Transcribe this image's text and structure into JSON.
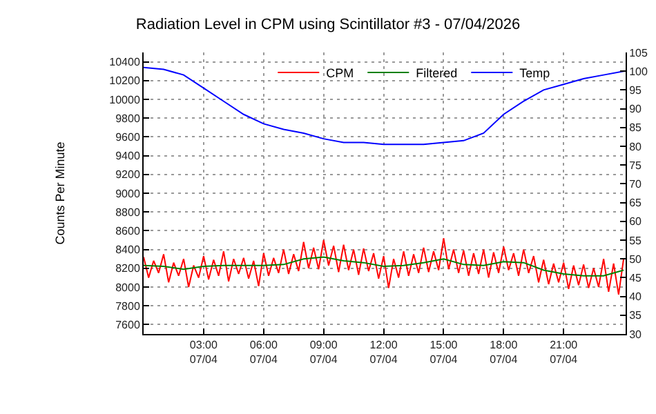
{
  "chart_data": {
    "type": "line",
    "title": "Radiation Level in CPM using Scintillator #3 - 07/04/2026",
    "ylabel": "Counts Per Minute",
    "xlim": [
      "2026-07-04T00:00",
      "2026-07-05T00:06"
    ],
    "xticks": [
      {
        "value": "2026-07-04T03:00",
        "label": "03:00\n07/04"
      },
      {
        "value": "2026-07-04T06:00",
        "label": "06:00\n07/04"
      },
      {
        "value": "2026-07-04T09:00",
        "label": "09:00\n07/04"
      },
      {
        "value": "2026-07-04T12:00",
        "label": "12:00\n07/04"
      },
      {
        "value": "2026-07-04T15:00",
        "label": "15:00\n07/04"
      },
      {
        "value": "2026-07-04T18:00",
        "label": "18:00\n07/04"
      },
      {
        "value": "2026-07-04T21:00",
        "label": "21:00\n07/04"
      }
    ],
    "ylim": [
      7500,
      10500
    ],
    "yticks": [
      7600,
      7800,
      8000,
      8200,
      8400,
      8600,
      8800,
      9000,
      9200,
      9400,
      9600,
      9800,
      10000,
      10200,
      10400
    ],
    "y2lim": [
      30,
      105
    ],
    "y2ticks": [
      30,
      35,
      40,
      45,
      50,
      55,
      60,
      65,
      70,
      75,
      80,
      85,
      90,
      95,
      100,
      105
    ],
    "grid": true,
    "legend": "top right",
    "line_style": "solid",
    "series": [
      {
        "name": "CPM",
        "color": "#ff0000",
        "x": [
          "2026-07-04T00:00",
          "2026-07-04T00:15",
          "2026-07-04T00:30",
          "2026-07-04T00:45",
          "2026-07-04T01:00",
          "2026-07-04T01:15",
          "2026-07-04T01:30",
          "2026-07-04T01:45",
          "2026-07-04T02:00",
          "2026-07-04T02:15",
          "2026-07-04T02:30",
          "2026-07-04T02:45",
          "2026-07-04T03:00",
          "2026-07-04T03:15",
          "2026-07-04T03:30",
          "2026-07-04T03:45",
          "2026-07-04T04:00",
          "2026-07-04T04:15",
          "2026-07-04T04:30",
          "2026-07-04T04:45",
          "2026-07-04T05:00",
          "2026-07-04T05:15",
          "2026-07-04T05:30",
          "2026-07-04T05:45",
          "2026-07-04T06:00",
          "2026-07-04T06:15",
          "2026-07-04T06:30",
          "2026-07-04T06:45",
          "2026-07-04T07:00",
          "2026-07-04T07:15",
          "2026-07-04T07:30",
          "2026-07-04T07:45",
          "2026-07-04T08:00",
          "2026-07-04T08:15",
          "2026-07-04T08:30",
          "2026-07-04T08:45",
          "2026-07-04T09:00",
          "2026-07-04T09:15",
          "2026-07-04T09:30",
          "2026-07-04T09:45",
          "2026-07-04T10:00",
          "2026-07-04T10:15",
          "2026-07-04T10:30",
          "2026-07-04T10:45",
          "2026-07-04T11:00",
          "2026-07-04T11:15",
          "2026-07-04T11:30",
          "2026-07-04T11:45",
          "2026-07-04T12:00",
          "2026-07-04T12:15",
          "2026-07-04T12:30",
          "2026-07-04T12:45",
          "2026-07-04T13:00",
          "2026-07-04T13:15",
          "2026-07-04T13:30",
          "2026-07-04T13:45",
          "2026-07-04T14:00",
          "2026-07-04T14:15",
          "2026-07-04T14:30",
          "2026-07-04T14:45",
          "2026-07-04T15:00",
          "2026-07-04T15:15",
          "2026-07-04T15:30",
          "2026-07-04T15:45",
          "2026-07-04T16:00",
          "2026-07-04T16:15",
          "2026-07-04T16:30",
          "2026-07-04T16:45",
          "2026-07-04T17:00",
          "2026-07-04T17:15",
          "2026-07-04T17:30",
          "2026-07-04T17:45",
          "2026-07-04T18:00",
          "2026-07-04T18:15",
          "2026-07-04T18:30",
          "2026-07-04T18:45",
          "2026-07-04T19:00",
          "2026-07-04T19:15",
          "2026-07-04T19:30",
          "2026-07-04T19:45",
          "2026-07-04T20:00",
          "2026-07-04T20:15",
          "2026-07-04T20:30",
          "2026-07-04T20:45",
          "2026-07-04T21:00",
          "2026-07-04T21:15",
          "2026-07-04T21:30",
          "2026-07-04T21:45",
          "2026-07-04T22:00",
          "2026-07-04T22:15",
          "2026-07-04T22:30",
          "2026-07-04T22:45",
          "2026-07-04T23:00",
          "2026-07-04T23:15",
          "2026-07-04T23:30",
          "2026-07-04T23:45",
          "2026-07-05T00:00"
        ],
        "values": [
          8320,
          8100,
          8280,
          8150,
          8350,
          8050,
          8260,
          8120,
          8300,
          8000,
          8230,
          8100,
          8330,
          8080,
          8290,
          8120,
          8380,
          8060,
          8300,
          8140,
          8310,
          8090,
          8280,
          8010,
          8360,
          8120,
          8310,
          8150,
          8400,
          8140,
          8350,
          8170,
          8480,
          8200,
          8420,
          8190,
          8500,
          8230,
          8440,
          8160,
          8450,
          8180,
          8400,
          8130,
          8410,
          8170,
          8360,
          8090,
          8330,
          7990,
          8300,
          8100,
          8380,
          8120,
          8350,
          8150,
          8420,
          8160,
          8380,
          8180,
          8520,
          8190,
          8400,
          8150,
          8390,
          8120,
          8360,
          8140,
          8400,
          8100,
          8370,
          8150,
          8430,
          8180,
          8360,
          8120,
          8400,
          8150,
          8330,
          8050,
          8290,
          8030,
          8250,
          8050,
          8260,
          7980,
          8230,
          8020,
          8240,
          7990,
          8200,
          8000,
          8300,
          7950,
          8250,
          7920,
          8300
        ]
      },
      {
        "name": "Filtered",
        "color": "#008000",
        "x": [
          "2026-07-04T00:00",
          "2026-07-04T01:00",
          "2026-07-04T02:00",
          "2026-07-04T03:00",
          "2026-07-04T04:00",
          "2026-07-04T05:00",
          "2026-07-04T06:00",
          "2026-07-04T07:00",
          "2026-07-04T08:00",
          "2026-07-04T09:00",
          "2026-07-04T10:00",
          "2026-07-04T11:00",
          "2026-07-04T12:00",
          "2026-07-04T13:00",
          "2026-07-04T14:00",
          "2026-07-04T15:00",
          "2026-07-04T16:00",
          "2026-07-04T17:00",
          "2026-07-04T18:00",
          "2026-07-04T19:00",
          "2026-07-04T20:00",
          "2026-07-04T21:00",
          "2026-07-04T22:00",
          "2026-07-04T23:00",
          "2026-07-05T00:00"
        ],
        "values": [
          8230,
          8220,
          8190,
          8220,
          8230,
          8230,
          8230,
          8240,
          8300,
          8320,
          8280,
          8260,
          8220,
          8230,
          8260,
          8300,
          8240,
          8230,
          8270,
          8260,
          8180,
          8140,
          8120,
          8120,
          8180
        ]
      },
      {
        "name": "Temp",
        "color": "#0000ff",
        "axis": "y2",
        "x": [
          "2026-07-04T00:00",
          "2026-07-04T01:00",
          "2026-07-04T02:00",
          "2026-07-04T03:00",
          "2026-07-04T04:00",
          "2026-07-04T05:00",
          "2026-07-04T06:00",
          "2026-07-04T07:00",
          "2026-07-04T08:00",
          "2026-07-04T09:00",
          "2026-07-04T10:00",
          "2026-07-04T11:00",
          "2026-07-04T12:00",
          "2026-07-04T13:00",
          "2026-07-04T14:00",
          "2026-07-04T15:00",
          "2026-07-04T16:00",
          "2026-07-04T17:00",
          "2026-07-04T18:00",
          "2026-07-04T19:00",
          "2026-07-04T20:00",
          "2026-07-04T21:00",
          "2026-07-04T22:00",
          "2026-07-04T23:00",
          "2026-07-05T00:00"
        ],
        "values": [
          101,
          100.5,
          99,
          95.5,
          92,
          88.5,
          86,
          84.5,
          83.5,
          82,
          81,
          81,
          80.5,
          80.5,
          80.5,
          81,
          81.5,
          83.5,
          88.5,
          92,
          95,
          96.5,
          98,
          99,
          100
        ]
      }
    ]
  }
}
